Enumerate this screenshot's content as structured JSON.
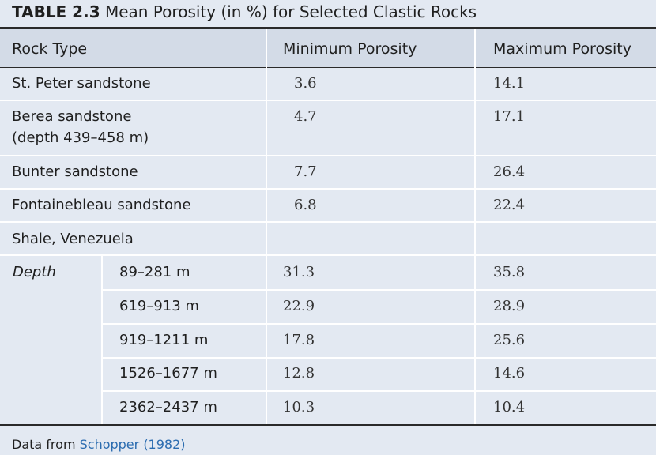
{
  "title": {
    "label": "TABLE 2.3",
    "text": "Mean Porosity (in %) for Selected Clastic Rocks"
  },
  "headers": {
    "rock_type": "Rock Type",
    "min": "Minimum Porosity",
    "max": "Maximum Porosity"
  },
  "rows": [
    {
      "name": "St. Peter sandstone",
      "min": "3.6",
      "max": "14.1"
    },
    {
      "name": "Berea sandstone",
      "name2": "(depth 439–458 m)",
      "min": "4.7",
      "max": "17.1"
    },
    {
      "name": "Bunter sandstone",
      "min": "7.7",
      "max": "26.4"
    },
    {
      "name": "Fontainebleau sandstone",
      "min": "6.8",
      "max": "22.4"
    },
    {
      "name": "Shale, Venezuela",
      "min": "",
      "max": ""
    }
  ],
  "depth_label": "Depth",
  "depth_rows": [
    {
      "depth": "89–281 m",
      "min": "31.3",
      "max": "35.8"
    },
    {
      "depth": "619–913 m",
      "min": "22.9",
      "max": "28.9"
    },
    {
      "depth": "919–1211 m",
      "min": "17.8",
      "max": "25.6"
    },
    {
      "depth": "1526–1677 m",
      "min": "12.8",
      "max": "14.6"
    },
    {
      "depth": "2362–2437 m",
      "min": "10.3",
      "max": "10.4"
    }
  ],
  "footer": {
    "prefix": "Data from ",
    "source": "Schopper (1982)"
  }
}
